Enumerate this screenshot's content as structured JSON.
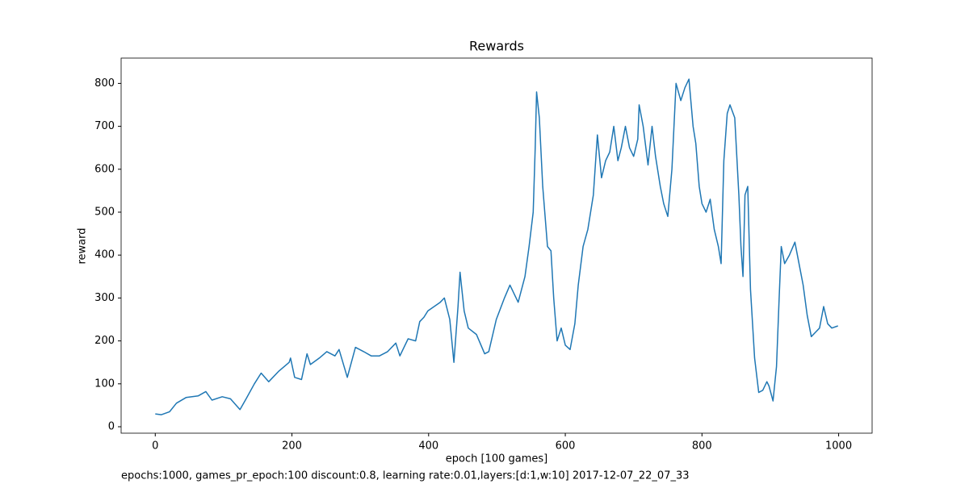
{
  "chart_data": {
    "type": "line",
    "title": "Rewards",
    "xlabel": "epoch [100 games]",
    "ylabel": "reward",
    "footer": "epochs:1000, games_pr_epoch:100 discount:0.8, learning rate:0.01,layers:[d:1,w:10] 2017-12-07_22_07_33",
    "x": [
      0,
      9,
      21,
      31,
      45,
      63,
      74,
      83,
      98,
      110,
      124,
      133,
      145,
      155,
      166,
      181,
      196,
      198,
      204,
      214,
      222,
      227,
      240,
      251,
      263,
      269,
      281,
      293,
      305,
      316,
      328,
      340,
      352,
      358,
      370,
      381,
      387,
      393,
      399,
      417,
      423,
      431,
      437,
      443,
      446,
      452,
      458,
      470,
      482,
      488,
      499,
      511,
      519,
      531,
      541,
      547,
      553,
      556,
      558,
      562,
      567,
      574,
      579,
      583,
      588,
      594,
      600,
      607,
      614,
      619,
      626,
      633,
      641,
      647,
      653,
      659,
      665,
      671,
      677,
      682,
      688,
      694,
      700,
      706,
      708,
      714,
      721,
      727,
      732,
      739,
      744,
      750,
      756,
      762,
      769,
      775,
      781,
      787,
      791,
      796,
      800,
      806,
      812,
      818,
      824,
      828,
      832,
      837,
      841,
      848,
      854,
      857,
      860,
      863,
      867,
      871,
      877,
      883,
      889,
      895,
      898,
      904,
      909,
      913,
      916,
      921,
      928,
      936,
      942,
      948,
      954,
      960,
      966,
      972,
      978,
      984,
      990,
      999
    ],
    "series": [
      {
        "name": "reward",
        "color": "#1f77b4",
        "values": [
          30,
          28,
          35,
          55,
          68,
          72,
          82,
          62,
          70,
          65,
          40,
          65,
          100,
          125,
          105,
          130,
          150,
          160,
          115,
          110,
          170,
          145,
          160,
          175,
          165,
          180,
          115,
          185,
          175,
          165,
          165,
          175,
          195,
          165,
          205,
          200,
          245,
          255,
          270,
          290,
          300,
          250,
          150,
          280,
          360,
          270,
          230,
          215,
          170,
          175,
          250,
          300,
          330,
          290,
          350,
          420,
          500,
          650,
          780,
          720,
          560,
          420,
          410,
          300,
          200,
          230,
          190,
          180,
          240,
          330,
          420,
          460,
          540,
          680,
          580,
          620,
          640,
          700,
          620,
          650,
          700,
          650,
          630,
          670,
          750,
          700,
          610,
          700,
          630,
          560,
          520,
          490,
          600,
          800,
          760,
          790,
          810,
          700,
          660,
          560,
          520,
          500,
          530,
          460,
          420,
          380,
          620,
          730,
          750,
          720,
          540,
          420,
          350,
          540,
          560,
          320,
          160,
          80,
          85,
          105,
          95,
          60,
          140,
          300,
          420,
          380,
          400,
          430,
          380,
          330,
          260,
          210,
          220,
          230,
          280,
          240,
          230,
          235
        ]
      }
    ],
    "xlim": [
      -49.95,
      1048.95
    ],
    "ylim": [
      -15,
      859
    ],
    "xticks": [
      0,
      200,
      400,
      600,
      800,
      1000
    ],
    "yticks": [
      0,
      100,
      200,
      300,
      400,
      500,
      600,
      700,
      800
    ]
  }
}
